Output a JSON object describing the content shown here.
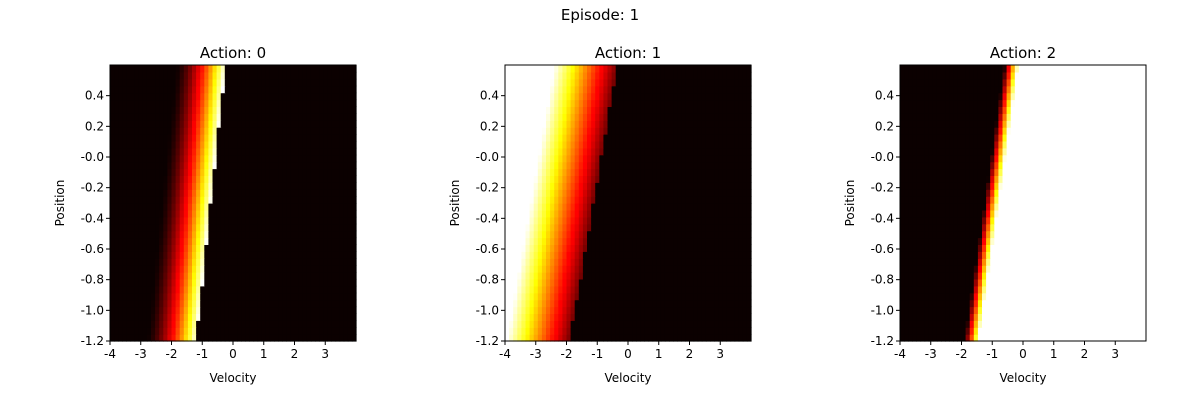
{
  "figure": {
    "suptitle": "Episode: 1"
  },
  "chart_data": [
    {
      "type": "heatmap",
      "title": "Action: 0",
      "xlabel": "Velocity",
      "ylabel": "Position",
      "colormap": "hot",
      "xlim": [
        -4,
        4
      ],
      "ylim": [
        -1.2,
        0.6
      ],
      "x_ticks": [
        -4,
        -3,
        -2,
        -1,
        0,
        1,
        2,
        3
      ],
      "x_tick_labels": [
        "-4",
        "-3",
        "-2",
        "-1",
        "0",
        "1",
        "2",
        "3"
      ],
      "y_ticks": [
        -1.2,
        -1.0,
        -0.8,
        -0.6,
        -0.4,
        -0.2,
        0.0,
        0.2,
        0.4
      ],
      "y_tick_labels": [
        "-1.2",
        "-1.0",
        "-0.8",
        "-0.6",
        "-0.4",
        "-0.2",
        "-0.0",
        "0.2",
        "0.4"
      ],
      "band": {
        "edge_at_bottom": -1.2,
        "edge_at_top": -0.25,
        "width": 1.6,
        "profile": "ramp_up"
      }
    },
    {
      "type": "heatmap",
      "title": "Action: 1",
      "xlabel": "Velocity",
      "ylabel": "Position",
      "colormap": "hot",
      "xlim": [
        -4,
        4
      ],
      "ylim": [
        -1.2,
        0.6
      ],
      "x_ticks": [
        -4,
        -3,
        -2,
        -1,
        0,
        1,
        2,
        3
      ],
      "x_tick_labels": [
        "-4",
        "-3",
        "-2",
        "-1",
        "0",
        "1",
        "2",
        "3"
      ],
      "y_ticks": [
        -1.2,
        -1.0,
        -0.8,
        -0.6,
        -0.4,
        -0.2,
        0.0,
        0.2,
        0.4
      ],
      "y_tick_labels": [
        "-1.2",
        "-1.0",
        "-0.8",
        "-0.6",
        "-0.4",
        "-0.2",
        "-0.0",
        "0.2",
        "0.4"
      ],
      "band": {
        "edge_at_bottom": -1.9,
        "edge_at_top": -0.35,
        "width": 2.4,
        "profile": "fade_left"
      }
    },
    {
      "type": "heatmap",
      "title": "Action: 2",
      "xlabel": "Velocity",
      "ylabel": "Position",
      "colormap": "hot",
      "xlim": [
        -4,
        4
      ],
      "ylim": [
        -1.2,
        0.6
      ],
      "x_ticks": [
        -4,
        -3,
        -2,
        -1,
        0,
        1,
        2,
        3
      ],
      "x_tick_labels": [
        "-4",
        "-3",
        "-2",
        "-1",
        "0",
        "1",
        "2",
        "3"
      ],
      "y_ticks": [
        -1.2,
        -1.0,
        -0.8,
        -0.6,
        -0.4,
        -0.2,
        0.0,
        0.2,
        0.4
      ],
      "y_tick_labels": [
        "-1.2",
        "-1.0",
        "-0.8",
        "-0.6",
        "-0.4",
        "-0.2",
        "-0.0",
        "0.2",
        "0.4"
      ],
      "band": {
        "edge_at_bottom": -1.45,
        "edge_at_top": -0.15,
        "width": 0.45,
        "profile": "step_right"
      }
    }
  ]
}
